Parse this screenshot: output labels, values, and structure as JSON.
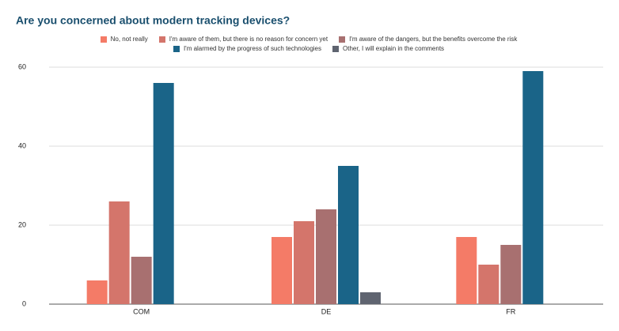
{
  "chart_data": {
    "type": "bar",
    "title": "Are you concerned about modern tracking devices?",
    "categories": [
      "COM",
      "DE",
      "FR"
    ],
    "series": [
      {
        "name": "No, not really",
        "color": "#f47b67",
        "values": [
          6,
          17,
          17
        ]
      },
      {
        "name": "I'm aware of them, but there is no reason for concern yet",
        "color": "#d4756b",
        "values": [
          26,
          21,
          10
        ]
      },
      {
        "name": "I'm aware of the dangers, but the benefits overcome the risk",
        "color": "#a87070",
        "values": [
          12,
          24,
          15
        ]
      },
      {
        "name": "I'm alarmed by the progress of such technologies",
        "color": "#1a6488",
        "values": [
          56,
          35,
          59
        ]
      },
      {
        "name": "Other, I will explain in the comments",
        "color": "#5f6470",
        "values": [
          0,
          3,
          0
        ]
      }
    ],
    "ylim": [
      0,
      65
    ],
    "yticks": [
      0,
      20,
      40,
      60
    ],
    "grid": true,
    "legend": "top"
  }
}
